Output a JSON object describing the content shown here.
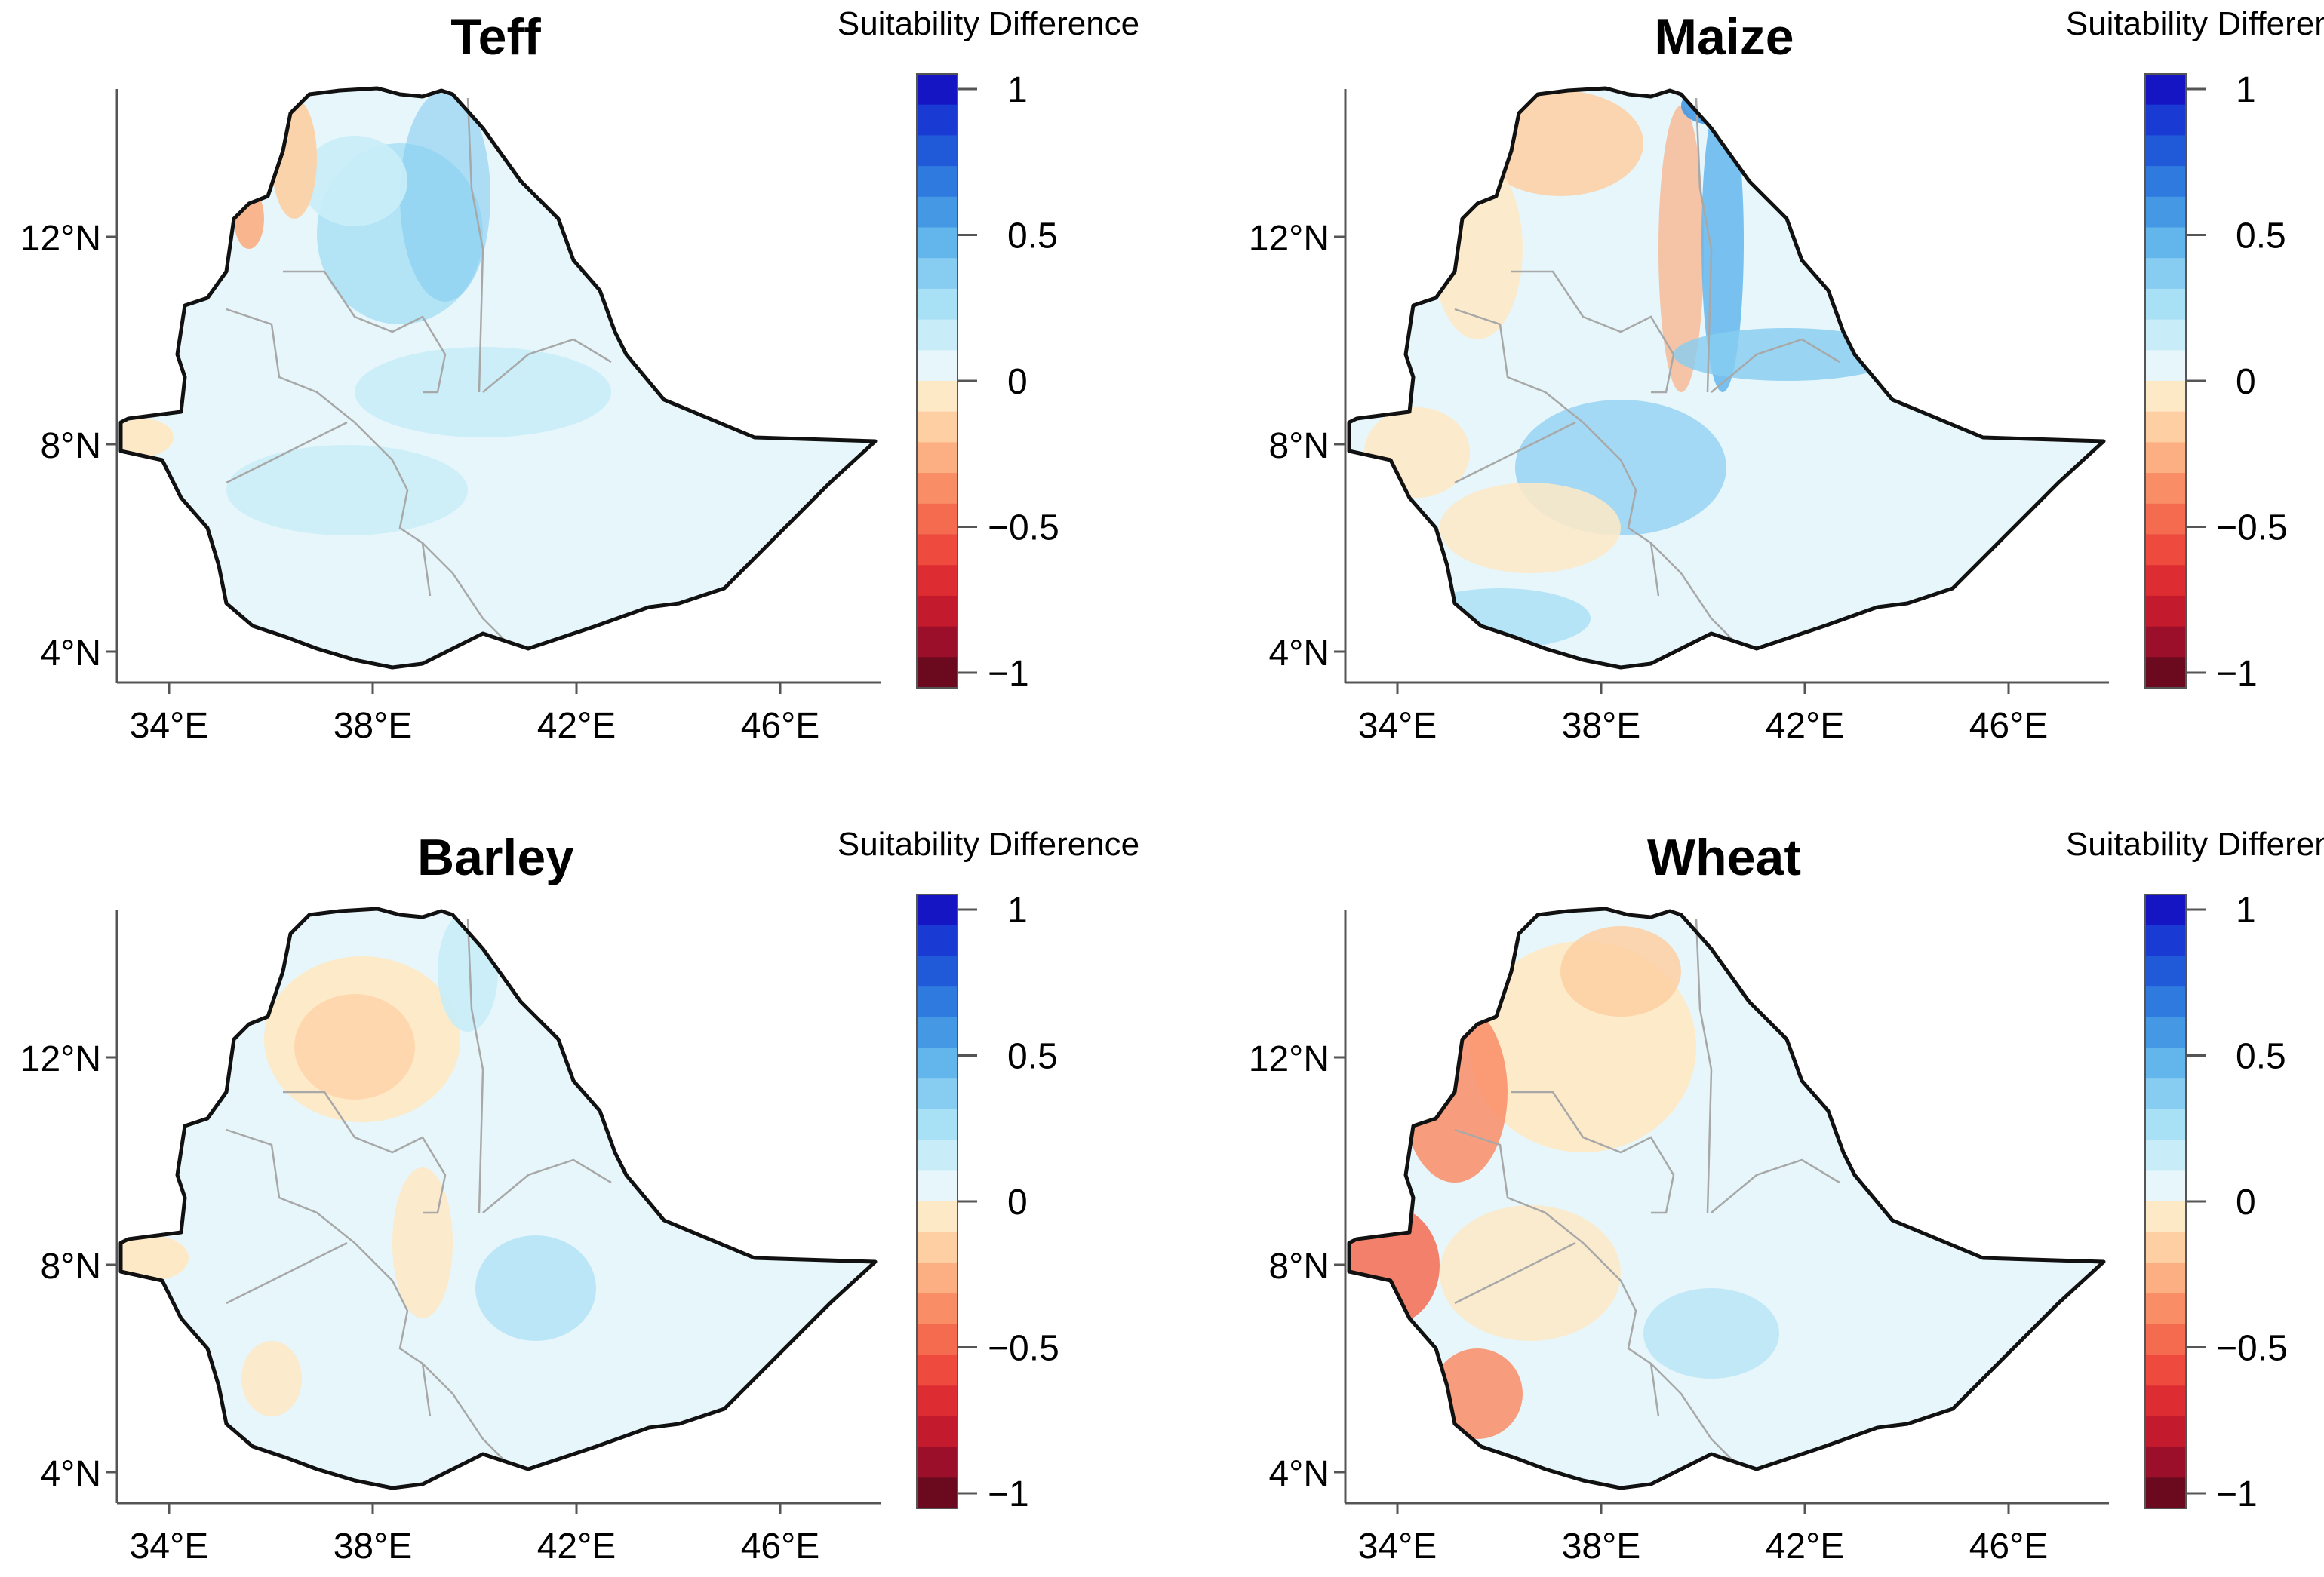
{
  "figure": {
    "colorbar": {
      "title": "Suitability Difference",
      "tick_labels": [
        "1",
        "0.5",
        "0",
        "−0.5",
        "−1"
      ],
      "tick_values": [
        1,
        0.5,
        0,
        -0.5,
        -1
      ],
      "range": [
        -1,
        1
      ],
      "levels": 20,
      "colors": [
        "#6b0a1f",
        "#9b0f2a",
        "#c41a2e",
        "#de2c33",
        "#ee4a3d",
        "#f46b50",
        "#f98d66",
        "#fbaf82",
        "#fdcfa2",
        "#fee9c6",
        "#e6f6fb",
        "#c8edf8",
        "#a8e0f5",
        "#86cdf1",
        "#63b6ec",
        "#4599e4",
        "#2f7ade",
        "#215ad8",
        "#1a3bd3",
        "#1515c4"
      ]
    },
    "axes": {
      "x_ticks": [
        34,
        38,
        42,
        46
      ],
      "x_tick_labels": [
        "34°E",
        "38°E",
        "42°E",
        "46°E"
      ],
      "y_ticks": [
        12,
        8,
        4
      ],
      "y_tick_labels": [
        "12°N",
        "8°N",
        "4°N"
      ],
      "xlim": [
        33,
        48
      ],
      "ylim": [
        3.4,
        14.9
      ]
    },
    "panels": [
      {
        "id": "teff",
        "title": "Teff",
        "fill": "#e6f6fb"
      },
      {
        "id": "maize",
        "title": "Maize",
        "fill": "#e6f6fb"
      },
      {
        "id": "barley",
        "title": "Barley",
        "fill": "#e6f6fb"
      },
      {
        "id": "wheat",
        "title": "Wheat",
        "fill": "#e6f6fb"
      }
    ]
  }
}
